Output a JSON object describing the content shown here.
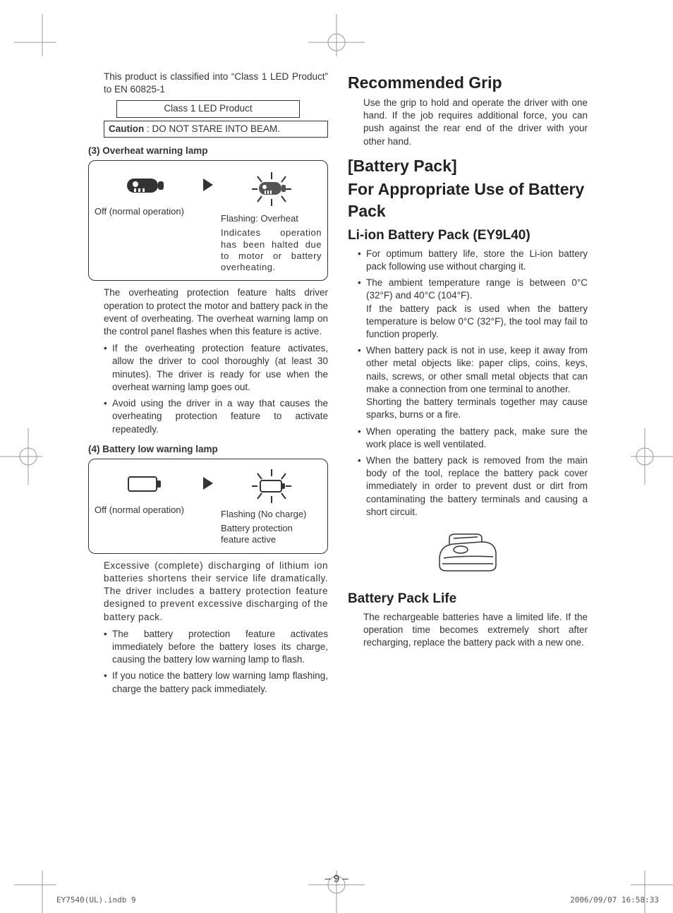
{
  "left": {
    "intro": "This product is classified into “Class 1 LED Product” to EN 60825-1",
    "box1": "Class 1 LED Product",
    "box2_label": "Caution",
    "box2_text": " : DO NOT STARE INTO BEAM.",
    "sec3_label": "(3)  Overheat warning lamp",
    "lamp3": {
      "off_caption": "Off (normal operation)",
      "flash_title": "Flashing: Overheat",
      "flash_body": "Indicates operation has been halted due to motor or battery overheating."
    },
    "sec3_body": "The overheating protection feature halts driver operation to protect the motor and battery pack in the event of overheating. The overheat warning lamp on the control panel flashes when this feature is active.",
    "sec3_bullets": [
      "If the overheating protection feature activates, allow the driver to cool thoroughly (at least 30 minutes). The driver is ready for use when the overheat warning lamp goes out.",
      "Avoid using the driver in a way that causes the overheating protection feature to activate repeatedly."
    ],
    "sec4_label": "(4)  Battery low warning lamp",
    "lamp4": {
      "off_caption": "Off (normal operation)",
      "flash_title": "Flashing (No charge)",
      "flash_body": "Battery protection feature active"
    },
    "sec4_body": "Excessive (complete) discharging of lithium ion batteries shortens their service life dramatically. The driver includes a battery protection feature designed to prevent excessive discharging of the battery pack.",
    "sec4_bullets": [
      "The battery protection feature activates immediately before the battery loses its charge, causing the battery low warning lamp to flash.",
      "If you notice the battery low warning lamp flashing, charge the battery pack immediately."
    ]
  },
  "right": {
    "h_grip": "Recommended Grip",
    "grip_body": "Use the grip to hold and operate the driver with one hand. If the job requires additional force, you can push against the rear end of the driver with your other hand.",
    "h_bp_bracket": "[Battery Pack]",
    "h_bp_use": "For Appropriate Use of Bat­tery Pack",
    "h_liion": "Li-ion Battery Pack (EY9L40)",
    "liion_bullets": [
      "For optimum battery life, store the Li-ion battery pack following use without charging it.",
      "The ambient temperature range is between 0°C (32°F) and 40°C (104°F).\nIf the battery pack is used when the battery temperature is below 0°C (32°F), the tool may fail to function properly.",
      "When battery pack is not in use, keep it away from other metal objects like: paper clips, coins, keys, nails, screws, or other small metal objects that can make a connection from one terminal to another.\nShorting the battery terminals together may cause sparks, burns or a fire.",
      "When operating the battery pack, make sure the work place is well ventilated.",
      "When the battery pack is removed from the main body of the tool, replace the battery pack cover immediately in order to prevent dust or dirt from contaminating the battery terminals and causing a short circuit."
    ],
    "h_bplife": "Battery Pack Life",
    "bplife_body": "The rechargeable batteries have a limited life. If the operation time becomes extremely short after recharging, replace the battery pack with a new one."
  },
  "page_number": "– 9 –",
  "footer_left": "EY7540(UL).indb   9",
  "footer_right": "2006/09/07   16:58:33",
  "colors": {
    "text": "#333333",
    "border": "#333333",
    "crop": "#999999"
  }
}
